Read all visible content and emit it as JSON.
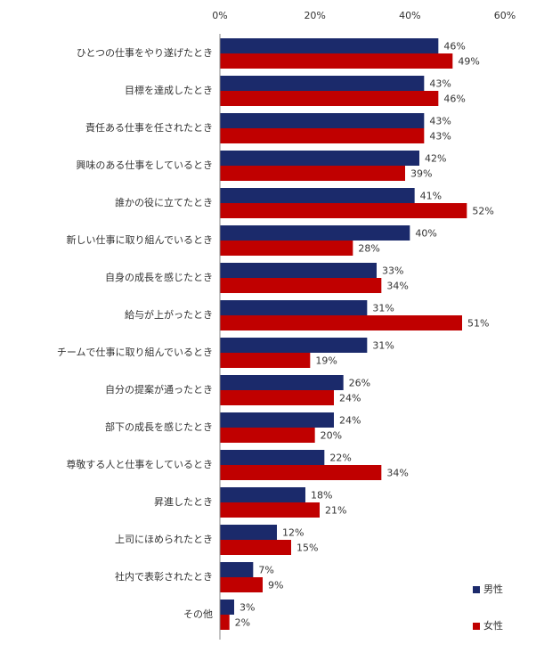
{
  "chart_data": {
    "type": "bar",
    "orientation": "horizontal",
    "categories": [
      "ひとつの仕事をやり遂げたとき",
      "目標を達成したとき",
      "責任ある仕事を任されたとき",
      "興味のある仕事をしているとき",
      "誰かの役に立てたとき",
      "新しい仕事に取り組んでいるとき",
      "自身の成長を感じたとき",
      "給与が上がったとき",
      "チームで仕事に取り組んでいるとき",
      "自分の提案が通ったとき",
      "部下の成長を感じたとき",
      "尊敬する人と仕事をしているとき",
      "昇進したとき",
      "上司にほめられたとき",
      "社内で表彰されたとき",
      "その他"
    ],
    "series": [
      {
        "name": "男性",
        "color": "#1b2a6b",
        "values": [
          46,
          43,
          43,
          42,
          41,
          40,
          33,
          31,
          31,
          26,
          24,
          22,
          18,
          12,
          7,
          3
        ],
        "value_labels": [
          "46%",
          "43%",
          "43%",
          "42%",
          "41%",
          "40%",
          "33%",
          "31%",
          "31%",
          "26%",
          "24%",
          "22%",
          "18%",
          "12%",
          "7%",
          "3%"
        ]
      },
      {
        "name": "女性",
        "color": "#c00000",
        "values": [
          49,
          46,
          43,
          39,
          52,
          28,
          34,
          51,
          19,
          24,
          20,
          34,
          21,
          15,
          9,
          2
        ],
        "value_labels": [
          "49%",
          "46%",
          "43%",
          "39%",
          "52%",
          "28%",
          "34%",
          "51%",
          "19%",
          "24%",
          "20%",
          "34%",
          "21%",
          "15%",
          "9%",
          "2%"
        ]
      }
    ],
    "xlim": [
      0,
      60
    ],
    "xticks": [
      {
        "value": 0,
        "label": "0%"
      },
      {
        "value": 20,
        "label": "20%"
      },
      {
        "value": 40,
        "label": "40%"
      },
      {
        "value": 60,
        "label": "60%"
      }
    ],
    "legend": "bottom-right"
  }
}
